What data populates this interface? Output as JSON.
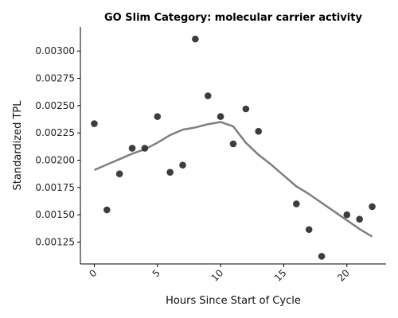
{
  "chart_data": {
    "type": "scatter",
    "title": "GO Slim Category: molecular carrier activity",
    "xlabel": "Hours Since Start of Cycle",
    "ylabel": "Standardized TPL",
    "xlim": [
      -1.1,
      23.1
    ],
    "ylim": [
      0.00105,
      0.00322
    ],
    "xticks": [
      0,
      5,
      10,
      15,
      20
    ],
    "xtick_labels": [
      "0",
      "5",
      "10",
      "15",
      "20"
    ],
    "xtick_rotation_deg": 45,
    "yticks": [
      0.00125,
      0.0015,
      0.00175,
      0.002,
      0.00225,
      0.0025,
      0.00275,
      0.003
    ],
    "ytick_labels": [
      "0.00125",
      "0.00150",
      "0.00175",
      "0.00200",
      "0.00225",
      "0.00250",
      "0.00275",
      "0.00300"
    ],
    "grid": false,
    "spines": "left-bottom",
    "series": [
      {
        "kind": "points",
        "color": "#333333",
        "x": [
          0,
          1,
          2,
          3,
          4,
          5,
          6,
          7,
          8,
          9,
          10,
          11,
          12,
          13,
          16,
          17,
          18,
          20,
          21,
          22
        ],
        "y": [
          0.002335,
          0.001545,
          0.001875,
          0.00211,
          0.00211,
          0.0024,
          0.00189,
          0.001955,
          0.00311,
          0.00259,
          0.0024,
          0.00215,
          0.00247,
          0.002265,
          0.0016,
          0.001365,
          0.00112,
          0.0015,
          0.00146,
          0.001575
        ]
      },
      {
        "kind": "trend-line",
        "color": "#7f7f7f",
        "x": [
          0,
          1,
          2,
          3,
          4,
          5,
          6,
          7,
          8,
          9,
          10,
          11,
          12,
          13,
          14,
          15,
          16,
          17,
          18,
          19,
          20,
          21,
          22
        ],
        "y": [
          0.00191,
          0.00196,
          0.00201,
          0.00206,
          0.0021,
          0.00216,
          0.00223,
          0.00228,
          0.0023,
          0.00233,
          0.00235,
          0.00231,
          0.00216,
          0.00205,
          0.00196,
          0.00186,
          0.00176,
          0.00169,
          0.00161,
          0.00153,
          0.00145,
          0.00137,
          0.0013
        ]
      }
    ]
  }
}
